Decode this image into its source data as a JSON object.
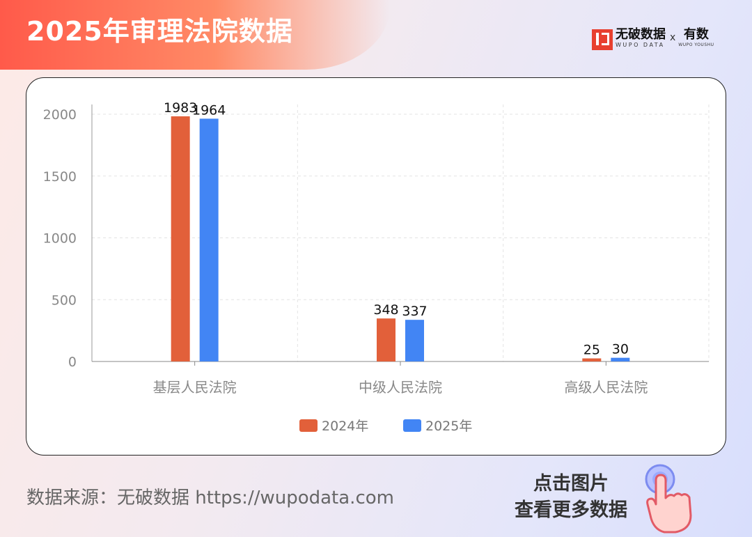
{
  "header": {
    "title": "2025年审理法院数据",
    "brand_name": "无破数据",
    "brand_sub": "WUPO DATA",
    "brand_x": "x",
    "partner_name": "有数",
    "partner_sub": "WUPO YOUSHU"
  },
  "footer": {
    "source": "数据来源：无破数据 https://wupodata.com",
    "cta_line1": "点击图片",
    "cta_line2": "查看更多数据"
  },
  "colors": {
    "series_2024": "#e2603a",
    "series_2025": "#4285f4",
    "title_banner": "#ff5a4a"
  },
  "chart_data": {
    "type": "bar",
    "title": "",
    "xlabel": "",
    "ylabel": "",
    "categories": [
      "基层人民法院",
      "中级人民法院",
      "高级人民法院"
    ],
    "series": [
      {
        "name": "2024年",
        "values": [
          1983,
          348,
          25
        ]
      },
      {
        "name": "2025年",
        "values": [
          1964,
          337,
          30
        ]
      }
    ],
    "ylim": [
      0,
      2000
    ],
    "yticks": [
      0,
      500,
      1000,
      1500,
      2000
    ],
    "grid": true,
    "legend_position": "bottom-center"
  }
}
